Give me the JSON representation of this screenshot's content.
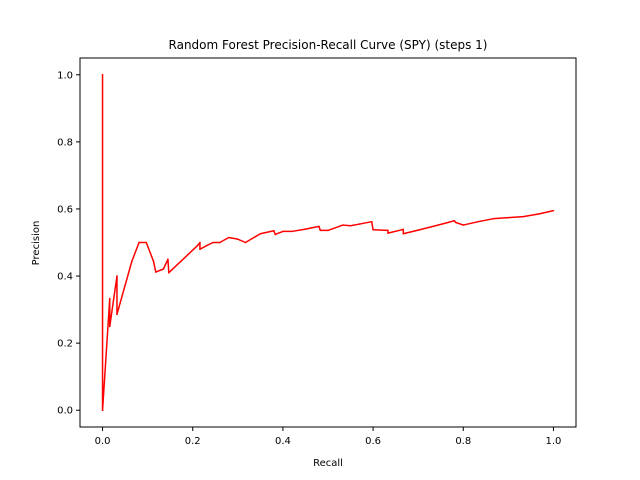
{
  "chart_data": {
    "type": "line",
    "title": "Random Forest Precision-Recall Curve (SPY) (steps 1)",
    "xlabel": "Recall",
    "ylabel": "Precision",
    "xlim": [
      -0.05,
      1.05
    ],
    "ylim": [
      -0.05,
      1.05
    ],
    "xticks": [
      "0.0",
      "0.2",
      "0.4",
      "0.6",
      "0.8",
      "1.0"
    ],
    "xtick_values": [
      0.0,
      0.2,
      0.4,
      0.6,
      0.8,
      1.0
    ],
    "yticks": [
      "0.0",
      "0.2",
      "0.4",
      "0.6",
      "0.8",
      "1.0"
    ],
    "ytick_values": [
      0.0,
      0.2,
      0.4,
      0.6,
      0.8,
      1.0
    ],
    "grid": false,
    "line_color": "#ff0000",
    "series": [
      {
        "color": "#ff0000",
        "x": [
          0.0,
          0.0,
          0.0,
          0.016,
          0.016,
          0.016,
          0.032,
          0.032,
          0.032,
          0.065,
          0.081,
          0.097,
          0.113,
          0.118,
          0.118,
          0.135,
          0.145,
          0.147,
          0.147,
          0.21,
          0.216,
          0.216,
          0.23,
          0.245,
          0.26,
          0.28,
          0.3,
          0.317,
          0.35,
          0.38,
          0.383,
          0.4,
          0.42,
          0.45,
          0.48,
          0.483,
          0.5,
          0.533,
          0.55,
          0.57,
          0.597,
          0.6,
          0.633,
          0.633,
          0.667,
          0.667,
          0.7,
          0.733,
          0.767,
          0.78,
          0.783,
          0.8,
          0.833,
          0.867,
          0.9,
          0.933,
          0.967,
          1.0
        ],
        "y": [
          0.0,
          1.0,
          0.0,
          0.333,
          0.25,
          0.25,
          0.4,
          0.286,
          0.286,
          0.444,
          0.5,
          0.5,
          0.444,
          0.412,
          0.412,
          0.421,
          0.45,
          0.41,
          0.41,
          0.49,
          0.5,
          0.48,
          0.49,
          0.5,
          0.5,
          0.515,
          0.51,
          0.5,
          0.526,
          0.535,
          0.524,
          0.533,
          0.533,
          0.54,
          0.548,
          0.536,
          0.536,
          0.552,
          0.55,
          0.555,
          0.562,
          0.538,
          0.536,
          0.528,
          0.539,
          0.526,
          0.537,
          0.548,
          0.56,
          0.565,
          0.56,
          0.552,
          0.562,
          0.571,
          0.574,
          0.577,
          0.585,
          0.595
        ]
      }
    ]
  }
}
